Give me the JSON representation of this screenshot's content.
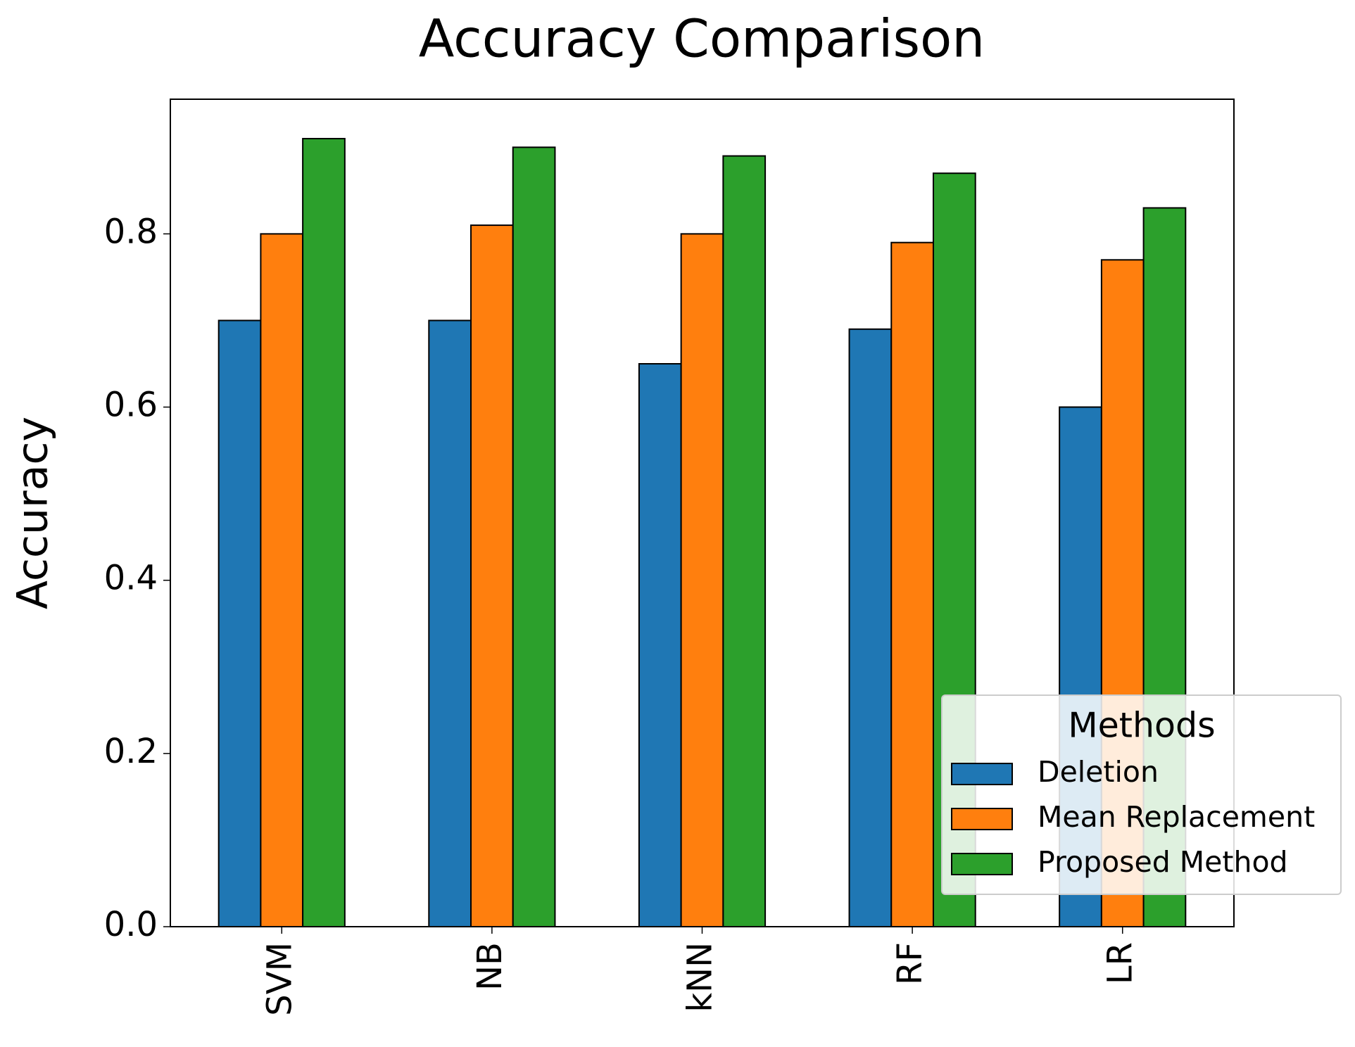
{
  "chart_data": {
    "type": "bar",
    "title": "Accuracy Comparison",
    "y_label": "Accuracy",
    "categories": [
      "SVM",
      "NB",
      "kNN",
      "RF",
      "LR"
    ],
    "series": [
      {
        "name": "Deletion",
        "color": "#1f77b4",
        "values": [
          0.7,
          0.7,
          0.65,
          0.69,
          0.6
        ]
      },
      {
        "name": "Mean Replacement",
        "color": "#ff7f0e",
        "values": [
          0.8,
          0.81,
          0.8,
          0.79,
          0.77
        ]
      },
      {
        "name": "Proposed Method",
        "color": "#2ca02c",
        "values": [
          0.91,
          0.9,
          0.89,
          0.87,
          0.83
        ]
      }
    ],
    "ylim": [
      0,
      0.9555
    ],
    "yticks": [
      {
        "value": 0,
        "label": "0.0"
      },
      0.2,
      0.4,
      0.6,
      0.8
    ],
    "legend_title": "Methods",
    "legend": "lower right"
  }
}
